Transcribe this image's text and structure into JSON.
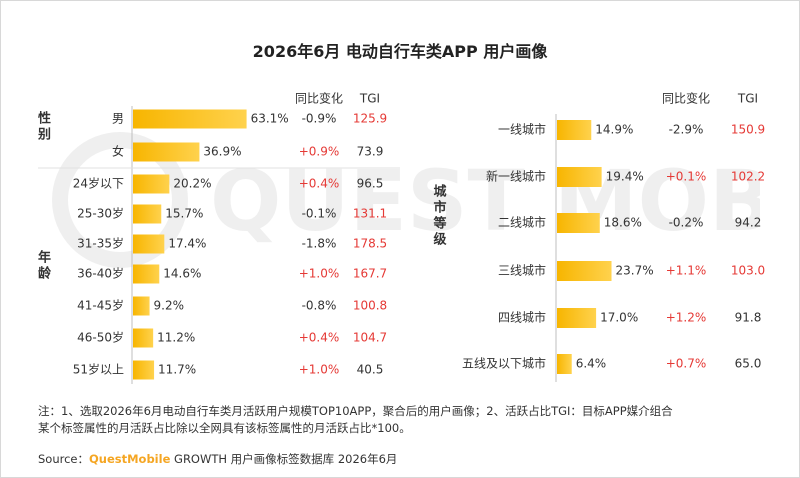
{
  "title": "2026年6月 电动自行车类APP 用户画像",
  "watermark": "QUEST MOBILE",
  "headers": {
    "change": "同比变化",
    "tgi": "TGI"
  },
  "colors": {
    "bar": "#f7b500",
    "bar_light": "#ffd24d",
    "red": "#e53935",
    "text": "#333333",
    "line": "#bfbfbf"
  },
  "chart_data": [
    {
      "type": "bar",
      "orientation": "horizontal",
      "groups": [
        {
          "label": "性别",
          "categories": [
            "男",
            "女"
          ]
        },
        {
          "label": "年龄",
          "categories": [
            "24岁以下",
            "25-30岁",
            "31-35岁",
            "36-40岁",
            "41-45岁",
            "46-50岁",
            "51岁以上"
          ]
        }
      ],
      "categories": [
        "男",
        "女",
        "24岁以下",
        "25-30岁",
        "31-35岁",
        "36-40岁",
        "41-45岁",
        "46-50岁",
        "51岁以上"
      ],
      "values": [
        63.1,
        36.9,
        20.2,
        15.7,
        17.4,
        14.6,
        9.2,
        11.2,
        11.7
      ],
      "value_labels": [
        "63.1%",
        "36.9%",
        "20.2%",
        "15.7%",
        "17.4%",
        "14.6%",
        "9.2%",
        "11.2%",
        "11.7%"
      ],
      "change": [
        "-0.9%",
        "+0.9%",
        "+0.4%",
        "-0.1%",
        "-1.8%",
        "+1.0%",
        "-0.8%",
        "+0.4%",
        "+1.0%"
      ],
      "tgi": [
        "125.9",
        "73.9",
        "96.5",
        "131.1",
        "178.5",
        "167.7",
        "100.8",
        "104.7",
        "40.5"
      ]
    },
    {
      "type": "bar",
      "orientation": "horizontal",
      "groups": [
        {
          "label": "城市等级",
          "categories": [
            "一线城市",
            "新一线城市",
            "二线城市",
            "三线城市",
            "四线城市",
            "五线及以下城市"
          ]
        }
      ],
      "categories": [
        "一线城市",
        "新一线城市",
        "二线城市",
        "三线城市",
        "四线城市",
        "五线及以下城市"
      ],
      "values": [
        14.9,
        19.4,
        18.6,
        23.7,
        17.0,
        6.4
      ],
      "value_labels": [
        "14.9%",
        "19.4%",
        "18.6%",
        "23.7%",
        "17.0%",
        "6.4%"
      ],
      "change": [
        "-2.9%",
        "+0.1%",
        "-0.2%",
        "+1.1%",
        "+1.2%",
        "+0.7%"
      ],
      "tgi": [
        "150.9",
        "102.2",
        "94.2",
        "103.0",
        "91.8",
        "65.0"
      ]
    }
  ],
  "note_line1": "注：1、选取2026年6月电动自行车类月活跃用户规模TOP10APP，聚合后的用户画像；2、活跃占比TGI：目标APP媒介组合",
  "note_line2": "某个标签属性的月活跃占比除以全网具有该标签属性的月活跃占比*100。",
  "source_prefix": "Source：",
  "source_brand": "QuestMobile",
  "source_rest": " GROWTH 用户画像标签数据库 2026年6月"
}
